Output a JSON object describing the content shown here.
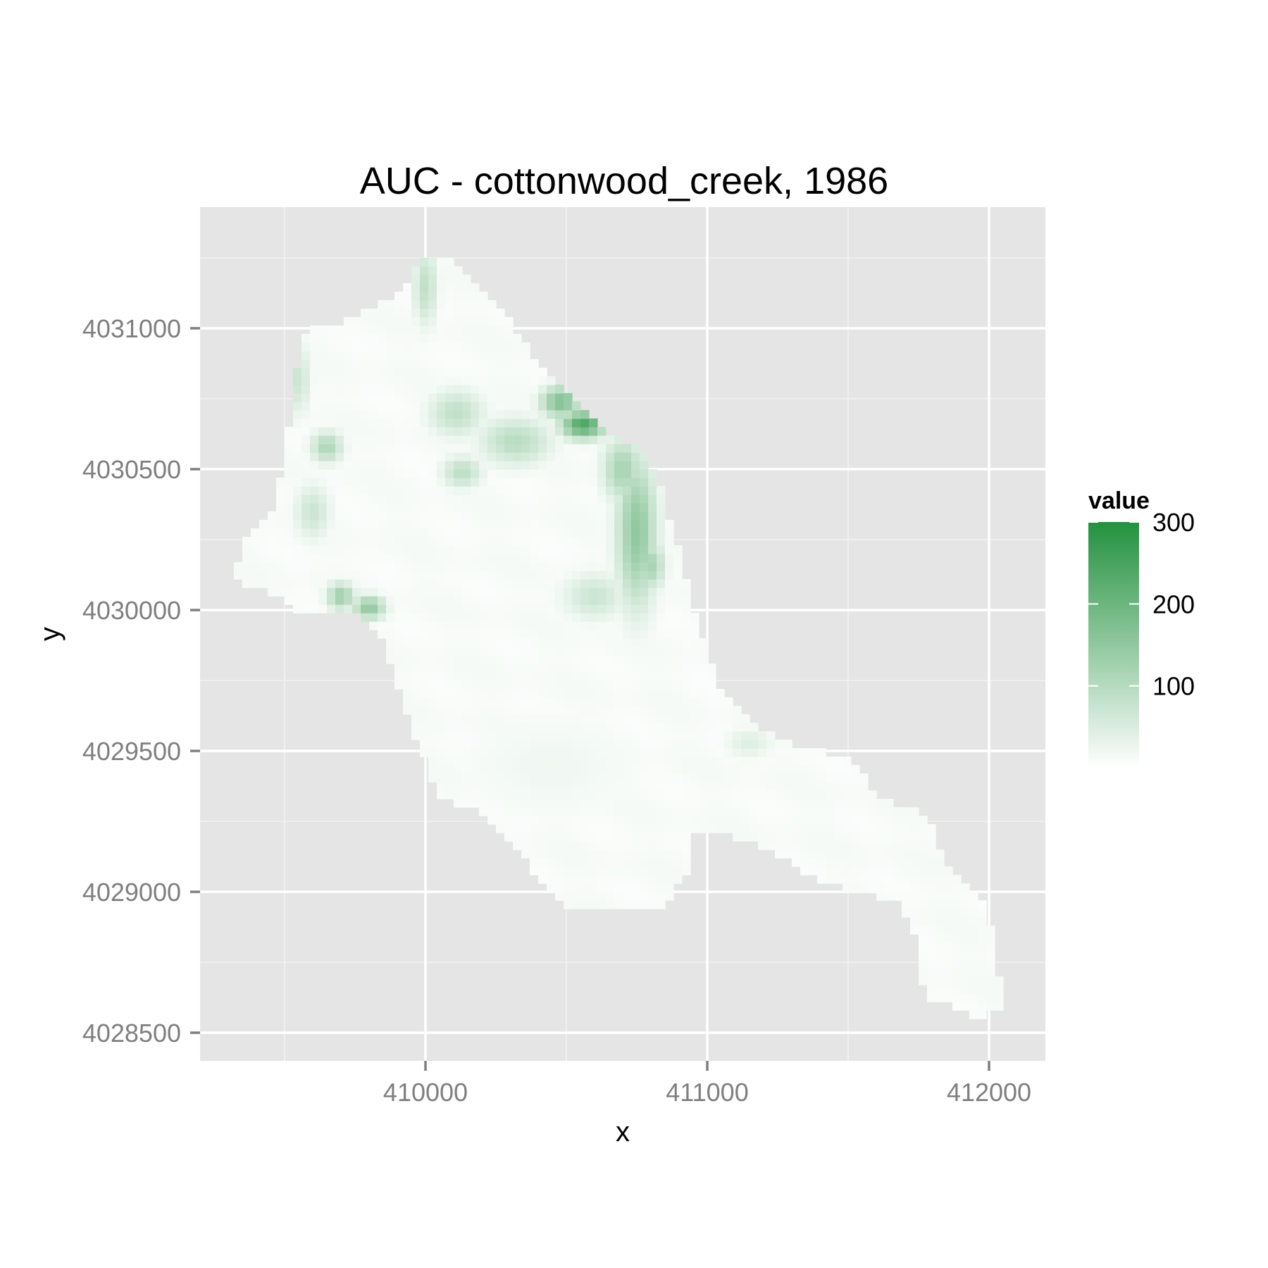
{
  "chart_data": {
    "type": "heatmap",
    "title": "AUC - cottonwood_creek, 1986",
    "xlabel": "x",
    "ylabel": "y",
    "xlim": [
      409200,
      412200
    ],
    "ylim": [
      4028400,
      4031430
    ],
    "x_ticks": [
      410000,
      411000,
      412000
    ],
    "x_tick_labels": [
      "410000",
      "411000",
      "412000"
    ],
    "y_ticks": [
      4028500,
      4029000,
      4029500,
      4030000,
      4030500,
      4031000
    ],
    "y_tick_labels": [
      "4028500",
      "4029000",
      "4029500",
      "4030000",
      "4030500",
      "4031000"
    ],
    "grid": true,
    "cell_size": 30,
    "legend": {
      "title": "value",
      "placement": "right",
      "breaks": [
        100,
        200,
        300
      ],
      "break_labels": [
        "100",
        "200",
        "300"
      ],
      "min": 0,
      "max": 300,
      "low_color": "#ffffff",
      "high_color": "#23913f"
    },
    "colors": {
      "panel_background": "#e5e5e5",
      "grid_major": "#ffffff",
      "grid_minor": "#f2f2f2",
      "tick_label": "#7f7f7f",
      "text": "#000000"
    },
    "extent_outline": [
      [
        410000,
        4031270
      ],
      [
        410120,
        4031230
      ],
      [
        410300,
        4031030
      ],
      [
        410400,
        4030880
      ],
      [
        410500,
        4030760
      ],
      [
        410620,
        4030650
      ],
      [
        410780,
        4030560
      ],
      [
        410830,
        4030450
      ],
      [
        410900,
        4030200
      ],
      [
        410980,
        4029900
      ],
      [
        411050,
        4029700
      ],
      [
        411180,
        4029580
      ],
      [
        411350,
        4029500
      ],
      [
        411500,
        4029490
      ],
      [
        411600,
        4029340
      ],
      [
        411780,
        4029280
      ],
      [
        411850,
        4029080
      ],
      [
        411960,
        4029000
      ],
      [
        412020,
        4028840
      ],
      [
        412050,
        4028570
      ],
      [
        411930,
        4028560
      ],
      [
        411840,
        4028620
      ],
      [
        411770,
        4028620
      ],
      [
        411750,
        4028830
      ],
      [
        411680,
        4028960
      ],
      [
        411430,
        4029030
      ],
      [
        411200,
        4029150
      ],
      [
        411050,
        4029220
      ],
      [
        410950,
        4029220
      ],
      [
        410930,
        4029080
      ],
      [
        410850,
        4028940
      ],
      [
        410780,
        4028950
      ],
      [
        410500,
        4028950
      ],
      [
        410420,
        4029030
      ],
      [
        410300,
        4029170
      ],
      [
        410180,
        4029300
      ],
      [
        410050,
        4029330
      ],
      [
        409990,
        4029480
      ],
      [
        409900,
        4029720
      ],
      [
        409850,
        4029910
      ],
      [
        409720,
        4030000
      ],
      [
        409550,
        4030000
      ],
      [
        409440,
        4030060
      ],
      [
        409330,
        4030100
      ],
      [
        409340,
        4030230
      ],
      [
        409450,
        4030330
      ],
      [
        409500,
        4030550
      ],
      [
        409540,
        4030800
      ],
      [
        409560,
        4030990
      ],
      [
        409720,
        4031030
      ],
      [
        409900,
        4031120
      ]
    ],
    "hotspots": [
      {
        "x": 410560,
        "y": 4030660,
        "sx": 55,
        "sy": 35,
        "value": 240
      },
      {
        "x": 410480,
        "y": 4030740,
        "sx": 50,
        "sy": 40,
        "value": 170
      },
      {
        "x": 410750,
        "y": 4030280,
        "sx": 50,
        "sy": 190,
        "value": 150
      },
      {
        "x": 410800,
        "y": 4030160,
        "sx": 35,
        "sy": 60,
        "value": 120
      },
      {
        "x": 410700,
        "y": 4030500,
        "sx": 50,
        "sy": 80,
        "value": 120
      },
      {
        "x": 410320,
        "y": 4030600,
        "sx": 90,
        "sy": 60,
        "value": 95
      },
      {
        "x": 410110,
        "y": 4030700,
        "sx": 70,
        "sy": 60,
        "value": 85
      },
      {
        "x": 410130,
        "y": 4030490,
        "sx": 50,
        "sy": 40,
        "value": 90
      },
      {
        "x": 409800,
        "y": 4030010,
        "sx": 40,
        "sy": 30,
        "value": 150
      },
      {
        "x": 409700,
        "y": 4030050,
        "sx": 35,
        "sy": 35,
        "value": 130
      },
      {
        "x": 409650,
        "y": 4030580,
        "sx": 40,
        "sy": 40,
        "value": 110
      },
      {
        "x": 409600,
        "y": 4030350,
        "sx": 45,
        "sy": 70,
        "value": 70
      },
      {
        "x": 409550,
        "y": 4030820,
        "sx": 30,
        "sy": 90,
        "value": 70
      },
      {
        "x": 410000,
        "y": 4031150,
        "sx": 30,
        "sy": 100,
        "value": 85
      },
      {
        "x": 410600,
        "y": 4030050,
        "sx": 80,
        "sy": 60,
        "value": 70
      },
      {
        "x": 411150,
        "y": 4029530,
        "sx": 60,
        "sy": 40,
        "value": 45
      },
      {
        "x": 410450,
        "y": 4029450,
        "sx": 250,
        "sy": 150,
        "value": 20
      }
    ]
  }
}
